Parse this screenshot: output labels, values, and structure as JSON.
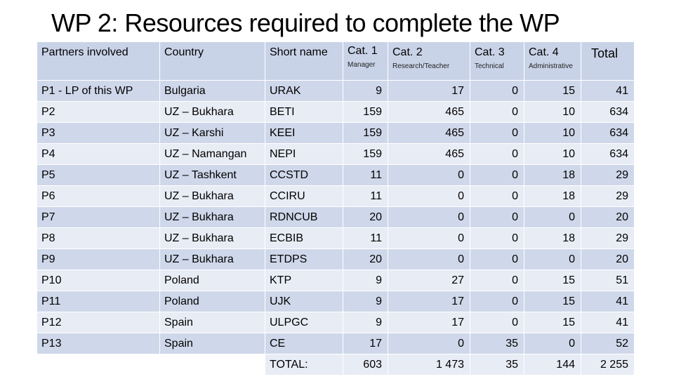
{
  "title": "WP 2: Resources required to complete the WP",
  "table": {
    "headers": [
      {
        "main": "Partners involved",
        "sub": ""
      },
      {
        "main": "Country",
        "sub": ""
      },
      {
        "main": "Short name",
        "sub": ""
      },
      {
        "main": "Cat. 1",
        "sub": "Manager"
      },
      {
        "main": "Cat. 2",
        "sub": "Research/Teacher"
      },
      {
        "main": "Cat. 3",
        "sub": "Technical"
      },
      {
        "main": "Cat. 4",
        "sub": "Administrative"
      },
      {
        "main": "Total",
        "sub": ""
      }
    ],
    "rows": [
      [
        "P1 - LP of this WP",
        "Bulgaria",
        "URAK",
        "9",
        "17",
        "0",
        "15",
        "41"
      ],
      [
        "P2",
        "UZ – Bukhara",
        "BETI",
        "159",
        "465",
        "0",
        "10",
        "634"
      ],
      [
        "P3",
        "UZ – Karshi",
        "KEEI",
        "159",
        "465",
        "0",
        "10",
        "634"
      ],
      [
        "P4",
        "UZ – Namangan",
        "NEPI",
        "159",
        "465",
        "0",
        "10",
        "634"
      ],
      [
        "P5",
        "UZ – Tashkent",
        "CCSTD",
        "11",
        "0",
        "0",
        "18",
        "29"
      ],
      [
        "P6",
        "UZ – Bukhara",
        "CCIRU",
        "11",
        "0",
        "0",
        "18",
        "29"
      ],
      [
        "P7",
        "UZ – Bukhara",
        "RDNCUB",
        "20",
        "0",
        "0",
        "0",
        "20"
      ],
      [
        "P8",
        "UZ – Bukhara",
        "ECBIB",
        "11",
        "0",
        "0",
        "18",
        "29"
      ],
      [
        "P9",
        "UZ – Bukhara",
        "ETDPS",
        "20",
        "0",
        "0",
        "0",
        "20"
      ],
      [
        "P10",
        "Poland",
        "KTP",
        "9",
        "27",
        "0",
        "15",
        "51"
      ],
      [
        "P11",
        "Poland",
        "UJK",
        "9",
        "17",
        "0",
        "15",
        "41"
      ],
      [
        "P12",
        "Spain",
        "ULPGC",
        "9",
        "17",
        "0",
        "15",
        "41"
      ],
      [
        "P13",
        "Spain",
        "CE",
        "17",
        "0",
        "35",
        "0",
        "52"
      ]
    ],
    "total_row": [
      "",
      "",
      "TOTAL:",
      "603",
      "1 473",
      "35",
      "144",
      "2 255"
    ]
  }
}
